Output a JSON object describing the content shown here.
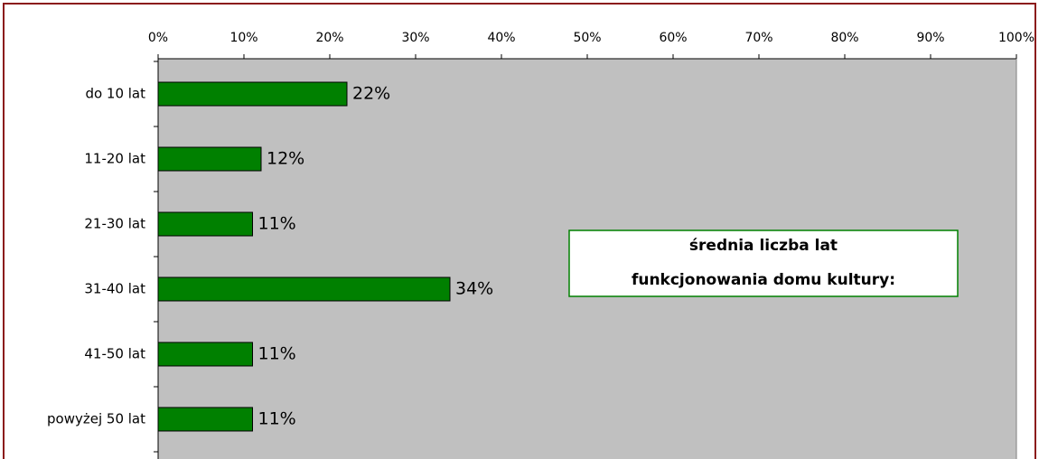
{
  "chart_data": {
    "type": "bar",
    "orientation": "horizontal",
    "categories": [
      "do 10 lat",
      "11-20 lat",
      "21-30 lat",
      "31-40 lat",
      "41-50 lat",
      "powyżej 50 lat"
    ],
    "values": [
      22,
      12,
      11,
      34,
      11,
      11
    ],
    "value_labels": [
      "22%",
      "12%",
      "11%",
      "34%",
      "11%",
      "11%"
    ],
    "color": "#008000",
    "xlim": [
      0,
      100
    ],
    "xticks": [
      {
        "value": 0,
        "label": "0%"
      },
      {
        "value": 10,
        "label": "10%"
      },
      {
        "value": 20,
        "label": "20%"
      },
      {
        "value": 30,
        "label": "30%"
      },
      {
        "value": 40,
        "label": "40%"
      },
      {
        "value": 50,
        "label": "50%"
      },
      {
        "value": 60,
        "label": "60%"
      },
      {
        "value": 70,
        "label": "70%"
      },
      {
        "value": 80,
        "label": "80%"
      },
      {
        "value": 90,
        "label": "90%"
      },
      {
        "value": 100,
        "label": "100%"
      }
    ],
    "annotation": [
      "średnia liczba lat",
      "funkcjonowania domu kultury:"
    ]
  }
}
